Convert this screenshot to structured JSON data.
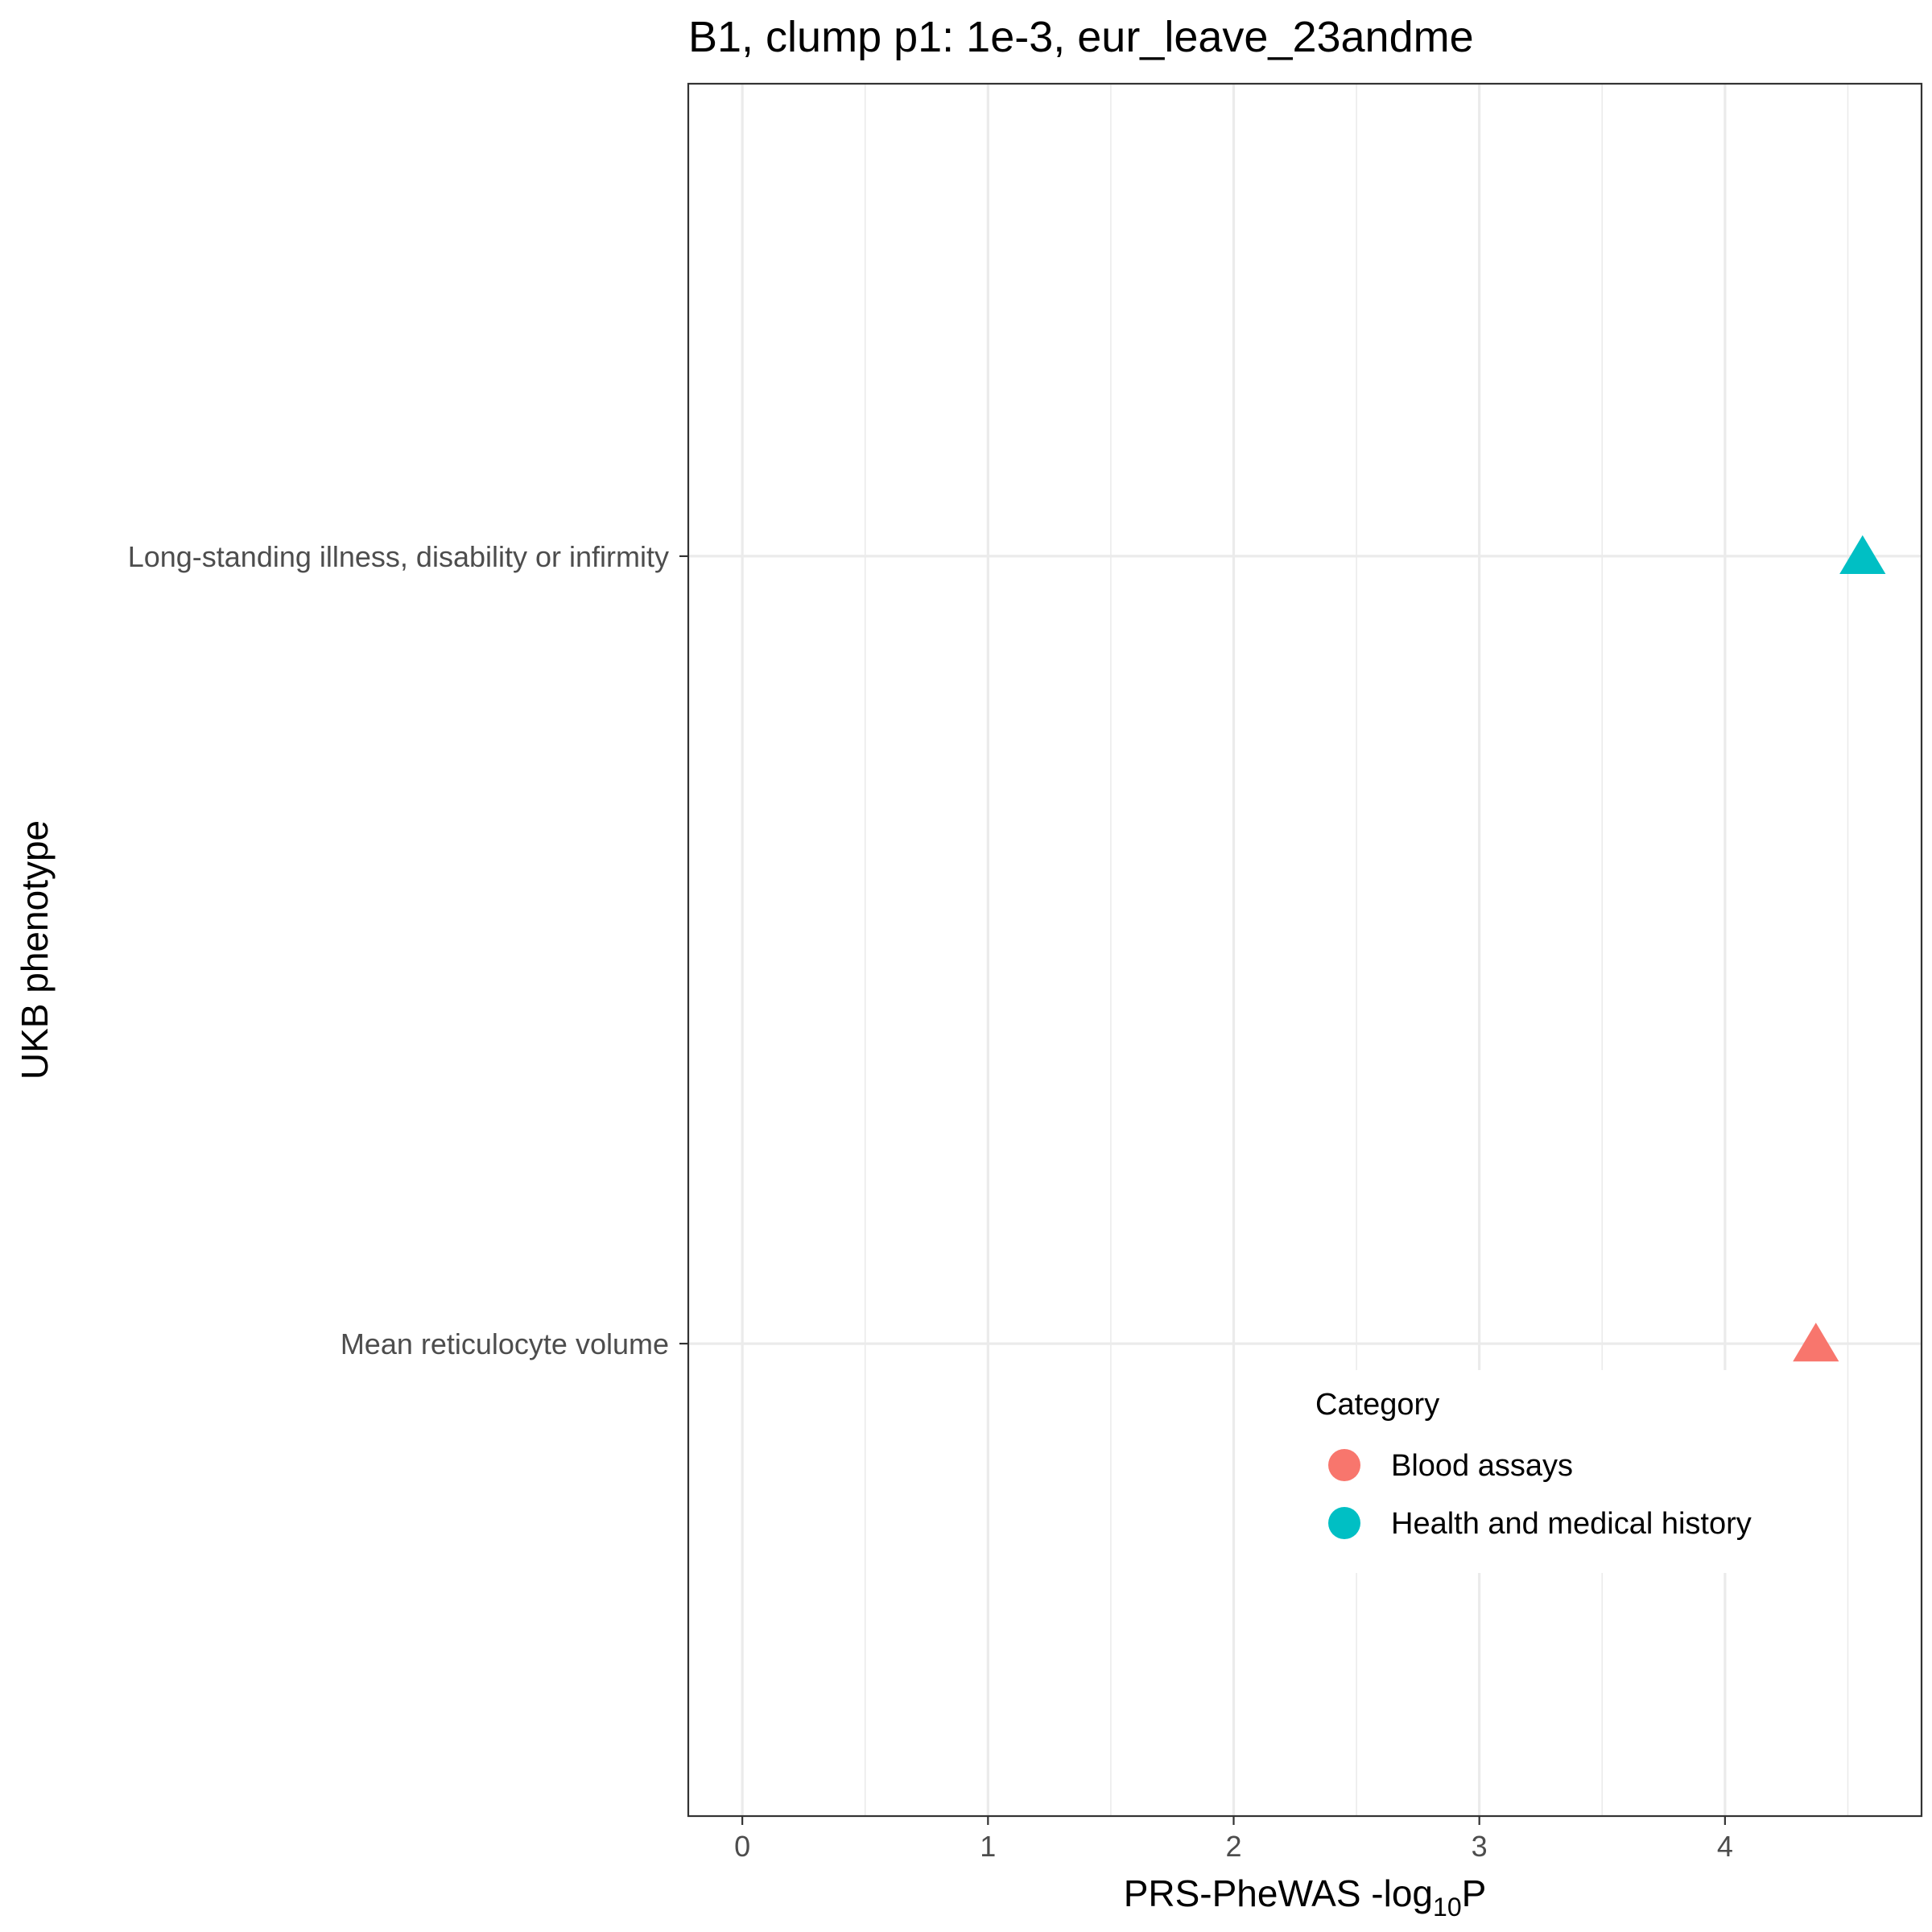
{
  "chart_data": {
    "type": "scatter",
    "title": "B1, clump p1: 1e-3, eur_leave_23andme",
    "xlabel": {
      "prefix": "PRS-PheWAS -log",
      "sub": "10",
      "suffix": "P"
    },
    "ylabel": "UKB phenotype",
    "xlim": [
      -0.22,
      4.8
    ],
    "x_ticks": [
      0,
      1,
      2,
      3,
      4
    ],
    "x_tick_labels": [
      "0",
      "1",
      "2",
      "3",
      "4"
    ],
    "x_minor_ticks": [
      0.5,
      1.5,
      2.5,
      3.5,
      4.5
    ],
    "categories": [
      "Mean reticulocyte volume",
      "Long-standing illness, disability or infirmity"
    ],
    "grid": true,
    "marker": "triangle",
    "points": [
      {
        "y": "Long-standing illness, disability or infirmity",
        "x": 4.56,
        "series": "Health and medical history"
      },
      {
        "y": "Mean reticulocyte volume",
        "x": 4.37,
        "series": "Blood assays"
      }
    ],
    "legend": {
      "title": "Category",
      "placement": "inside-bottom-right",
      "items": [
        {
          "label": "Blood assays",
          "color": "#F8766D"
        },
        {
          "label": "Health and medical history",
          "color": "#00BFC4"
        }
      ]
    }
  }
}
